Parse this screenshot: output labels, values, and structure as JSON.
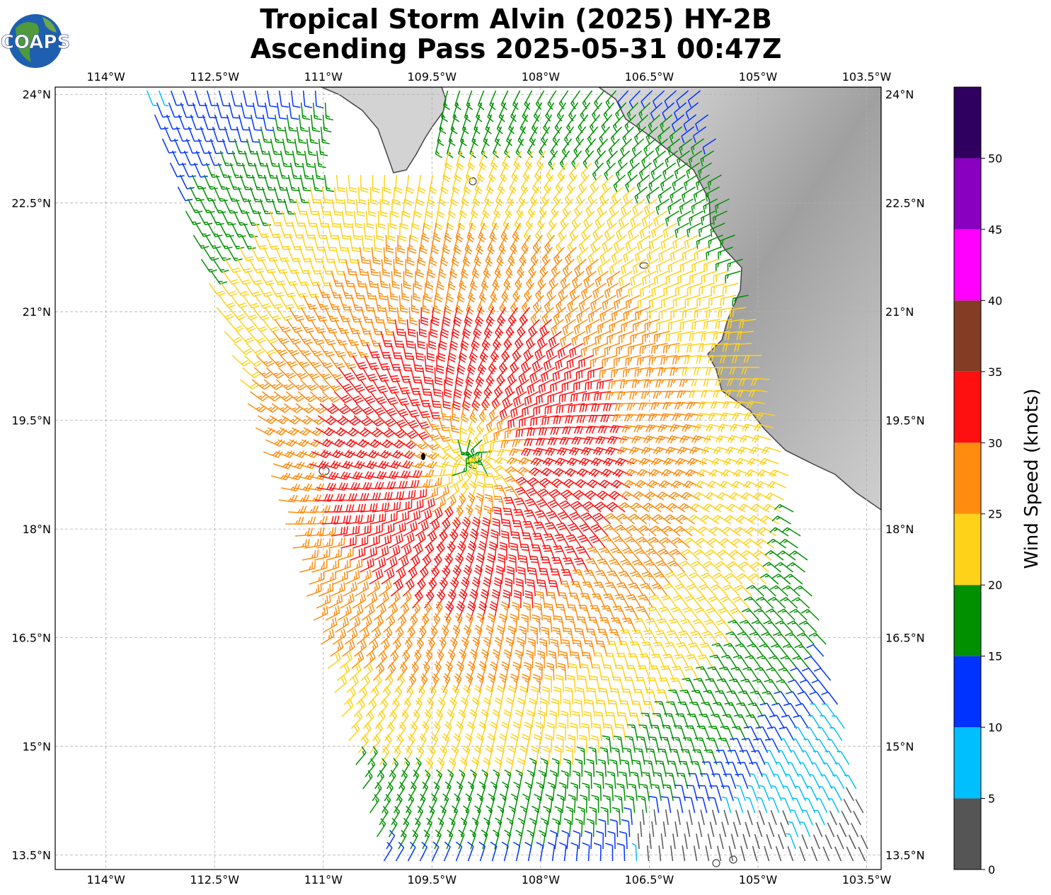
{
  "logo": {
    "text": "COAPS"
  },
  "title": {
    "line1": "Tropical Storm Alvin (2025) HY-2B",
    "line2": "Ascending Pass 2025-05-31 00:47Z"
  },
  "map": {
    "lon_range": [
      -114.7,
      -103.3
    ],
    "lat_range": [
      13.3,
      24.1
    ],
    "lon_ticks": [
      {
        "value": -114.0,
        "label": "114°W"
      },
      {
        "value": -112.5,
        "label": "112.5°W"
      },
      {
        "value": -111.0,
        "label": "111°W"
      },
      {
        "value": -109.5,
        "label": "109.5°W"
      },
      {
        "value": -108.0,
        "label": "108°W"
      },
      {
        "value": -106.5,
        "label": "106.5°W"
      },
      {
        "value": -105.0,
        "label": "105°W"
      },
      {
        "value": -103.5,
        "label": "103.5°W"
      }
    ],
    "lat_ticks": [
      {
        "value": 24.0,
        "label": "24°N"
      },
      {
        "value": 22.5,
        "label": "22.5°N"
      },
      {
        "value": 21.0,
        "label": "21°N"
      },
      {
        "value": 19.5,
        "label": "19.5°N"
      },
      {
        "value": 18.0,
        "label": "18°N"
      },
      {
        "value": 16.5,
        "label": "16.5°N"
      },
      {
        "value": 15.0,
        "label": "15°N"
      },
      {
        "value": 13.5,
        "label": "13.5°N"
      }
    ],
    "grid": true,
    "storm_center": {
      "lon": -108.95,
      "lat": 18.95
    },
    "storm_marker": {
      "lon": -109.62,
      "lat": 19.0
    }
  },
  "colorbar": {
    "label": "Wind Speed (knots)",
    "bins": [
      {
        "min": 0,
        "max": 5,
        "color": "#555555"
      },
      {
        "min": 5,
        "max": 10,
        "color": "#00bfff"
      },
      {
        "min": 10,
        "max": 15,
        "color": "#0033ff"
      },
      {
        "min": 15,
        "max": 20,
        "color": "#009000"
      },
      {
        "min": 20,
        "max": 25,
        "color": "#ffd21a"
      },
      {
        "min": 25,
        "max": 30,
        "color": "#ff8c0f"
      },
      {
        "min": 30,
        "max": 35,
        "color": "#ff1010"
      },
      {
        "min": 35,
        "max": 40,
        "color": "#843c24"
      },
      {
        "min": 40,
        "max": 45,
        "color": "#ff00ff"
      },
      {
        "min": 45,
        "max": 50,
        "color": "#8a00c0"
      },
      {
        "min": 50,
        "max": 55,
        "color": "#300060"
      }
    ],
    "tick_labels": [
      "0",
      "5",
      "10",
      "15",
      "20",
      "25",
      "30",
      "35",
      "40",
      "45",
      "50"
    ]
  },
  "colors": {
    "land": "#c8c8c8",
    "coastline": "#444444",
    "grid": "#b0b0b0"
  }
}
